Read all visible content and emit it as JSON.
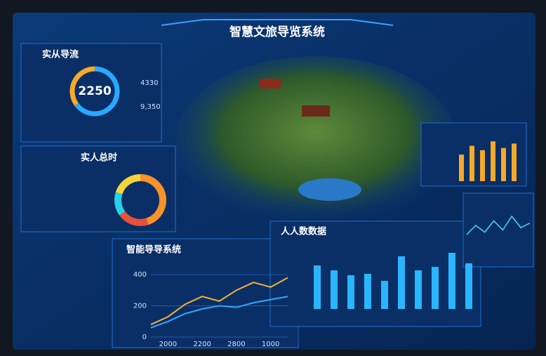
{
  "header": {
    "title": "智慧文旅导览系统"
  },
  "panels": {
    "flow": {
      "title": "实从导流",
      "center": "2250",
      "stats": [
        "4330",
        "9,350"
      ],
      "values": [
        65,
        35
      ],
      "colors": [
        "#29a8ff",
        "#f7a928"
      ]
    },
    "time": {
      "title": "实人总时",
      "values": [
        45,
        20,
        15,
        20
      ],
      "colors": [
        "#f7932a",
        "#e8513a",
        "#27d2e8",
        "#f5d33c"
      ]
    },
    "guide": {
      "title": "智能导导系统",
      "ylim": [
        0,
        450
      ],
      "yticks": [
        0,
        200,
        400
      ],
      "xlabels": [
        "2000",
        "2200",
        "2800",
        "1000"
      ],
      "series": [
        {
          "color": "#f7b23a",
          "values": [
            80,
            130,
            210,
            260,
            230,
            300,
            350,
            320,
            380
          ]
        },
        {
          "color": "#2fa8ff",
          "values": [
            60,
            100,
            150,
            180,
            200,
            190,
            220,
            240,
            260
          ]
        }
      ]
    },
    "data": {
      "title": "人人数数据",
      "ylim": [
        0,
        100
      ],
      "values": [
        62,
        55,
        48,
        50,
        40,
        75,
        55,
        60,
        80,
        65
      ],
      "color": "#29b6ff"
    },
    "side": {
      "ylim": [
        0,
        100
      ],
      "values": [
        60,
        80,
        70,
        90,
        75,
        85
      ],
      "color": "#f7a928",
      "line": {
        "ylim": [
          0,
          100
        ],
        "values": [
          40,
          60,
          45,
          70,
          50,
          80,
          55,
          65
        ],
        "color": "#3fe0e8"
      }
    }
  }
}
